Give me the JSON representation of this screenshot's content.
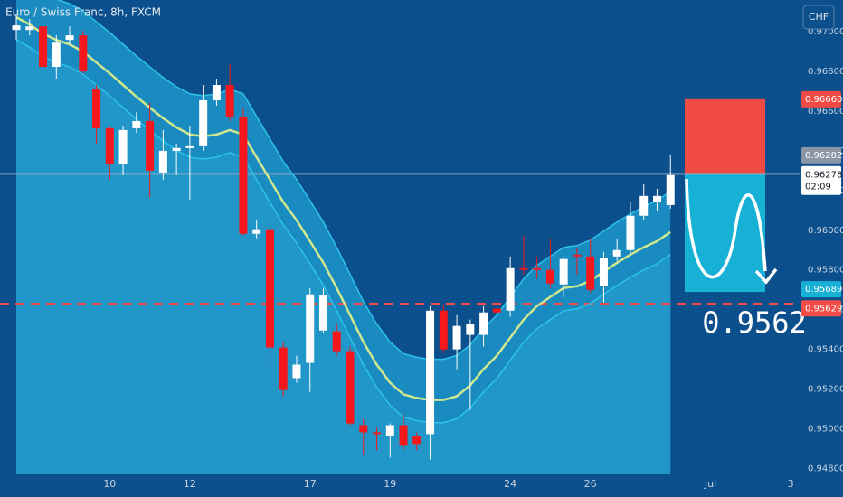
{
  "chart_data": {
    "type": "candlestick",
    "title": "Euro / Swiss Franc, 8h, FXCM",
    "currency_button": "CHF",
    "up_color": "#ffffff",
    "down_color": "#f5171b",
    "open": [
      0.97009,
      0.97009,
      0.97027,
      0.96823,
      0.96959,
      0.96982,
      0.96709,
      0.96514,
      0.96332,
      0.96514,
      0.9655,
      0.96291,
      0.964,
      0.96414,
      0.96423,
      0.96655,
      0.96732,
      0.96573,
      0.95982,
      0.96005,
      0.95409,
      0.95255,
      0.95332,
      0.95495,
      0.95491,
      0.95391,
      0.95018,
      0.94982,
      0.94964,
      0.95018,
      0.94964,
      0.94973,
      0.95595,
      0.954,
      0.95473,
      0.95473,
      0.95605,
      0.95595,
      0.95809,
      0.95809,
      0.958,
      0.95727,
      0.95877,
      0.95868,
      0.95718,
      0.95868,
      0.959,
      0.96073,
      0.96141,
      0.96127
    ],
    "high": [
      0.97082,
      0.97064,
      0.97073,
      0.96982,
      0.97027,
      0.97005,
      0.96732,
      0.96527,
      0.96527,
      0.96595,
      0.96641,
      0.96505,
      0.96436,
      0.96527,
      0.96732,
      0.96764,
      0.96836,
      0.96618,
      0.9605,
      0.96027,
      0.95436,
      0.95368,
      0.95709,
      0.95709,
      0.95527,
      0.95414,
      0.9505,
      0.95005,
      0.95027,
      0.95073,
      0.94982,
      0.95618,
      0.95627,
      0.95573,
      0.9555,
      0.95618,
      0.95636,
      0.95868,
      0.95973,
      0.95868,
      0.95959,
      0.95868,
      0.95914,
      0.95959,
      0.95891,
      0.95959,
      0.96141,
      0.96232,
      0.96209,
      0.96382
    ],
    "low": [
      0.96959,
      0.96982,
      0.96809,
      0.96764,
      0.96936,
      0.96791,
      0.96436,
      0.96255,
      0.96277,
      0.96491,
      0.96164,
      0.96255,
      0.96277,
      0.96155,
      0.964,
      0.96627,
      0.9655,
      0.95973,
      0.95959,
      0.953,
      0.95164,
      0.95232,
      0.95186,
      0.95482,
      0.95368,
      0.95018,
      0.94868,
      0.94891,
      0.94855,
      0.94891,
      0.94891,
      0.94845,
      0.95382,
      0.953,
      0.95095,
      0.95414,
      0.95573,
      0.95564,
      0.95777,
      0.95755,
      0.95709,
      0.95664,
      0.95777,
      0.95686,
      0.95636,
      0.95845,
      0.95882,
      0.9605,
      0.96095,
      0.96109
    ],
    "close": [
      0.97032,
      0.97027,
      0.96823,
      0.96945,
      0.96982,
      0.968,
      0.96514,
      0.96332,
      0.96505,
      0.9655,
      0.963,
      0.964,
      0.96414,
      0.96423,
      0.96655,
      0.96732,
      0.96573,
      0.95982,
      0.96005,
      0.95409,
      0.95195,
      0.95323,
      0.95677,
      0.95673,
      0.95391,
      0.95027,
      0.94982,
      0.94973,
      0.95018,
      0.94914,
      0.94923,
      0.95595,
      0.954,
      0.95518,
      0.95527,
      0.95586,
      0.95586,
      0.95809,
      0.958,
      0.958,
      0.95732,
      0.95855,
      0.95868,
      0.957,
      0.95859,
      0.959,
      0.96073,
      0.96173,
      0.96173,
      0.96278
    ],
    "indicators": [
      {
        "role": "upper",
        "color": "#2cc3ea",
        "values": [
          0.97278,
          0.97241,
          0.97196,
          0.97164,
          0.97141,
          0.97105,
          0.9705,
          0.96996,
          0.96937,
          0.96878,
          0.96823,
          0.96769,
          0.96723,
          0.96687,
          0.96678,
          0.96687,
          0.9671,
          0.96687,
          0.96573,
          0.9646,
          0.96346,
          0.96255,
          0.9615,
          0.96041,
          0.95914,
          0.95778,
          0.95641,
          0.95528,
          0.95437,
          0.95378,
          0.9536,
          0.9535,
          0.9535,
          0.95369,
          0.95423,
          0.95505,
          0.95573,
          0.95664,
          0.95755,
          0.95823,
          0.95869,
          0.95914,
          0.95923,
          0.9595,
          0.95996,
          0.96041,
          0.96082,
          0.96119,
          0.9615,
          0.96196
        ]
      },
      {
        "role": "lower",
        "color": "#2cc3ea",
        "values": [
          0.96959,
          0.96922,
          0.96877,
          0.96845,
          0.96822,
          0.96786,
          0.96731,
          0.96677,
          0.96618,
          0.96559,
          0.96504,
          0.9645,
          0.96404,
          0.96368,
          0.96359,
          0.96368,
          0.96391,
          0.96368,
          0.96254,
          0.96141,
          0.96027,
          0.95936,
          0.95831,
          0.95722,
          0.95595,
          0.95459,
          0.95322,
          0.95209,
          0.95118,
          0.95059,
          0.95041,
          0.95031,
          0.95031,
          0.9505,
          0.95104,
          0.95186,
          0.95254,
          0.95345,
          0.95436,
          0.95504,
          0.9555,
          0.95595,
          0.95604,
          0.95631,
          0.95677,
          0.95722,
          0.95763,
          0.958,
          0.95831,
          0.95877
        ]
      },
      {
        "role": "ma",
        "color": "#cfe88f",
        "values": [
          0.97073,
          0.97036,
          0.96991,
          0.96959,
          0.96936,
          0.969,
          0.96845,
          0.96791,
          0.96732,
          0.96673,
          0.96618,
          0.96564,
          0.96518,
          0.96482,
          0.96473,
          0.96482,
          0.96505,
          0.96482,
          0.96368,
          0.96255,
          0.96141,
          0.9605,
          0.95945,
          0.95836,
          0.95709,
          0.95573,
          0.95436,
          0.95323,
          0.95232,
          0.95173,
          0.95155,
          0.95145,
          0.95145,
          0.95164,
          0.95218,
          0.953,
          0.95368,
          0.95459,
          0.9555,
          0.95618,
          0.95664,
          0.95709,
          0.95718,
          0.95745,
          0.95791,
          0.95836,
          0.95877,
          0.95914,
          0.95945,
          0.95991
        ]
      }
    ],
    "xlim": [
      -1.22,
      58.74
    ],
    "xticks": [
      {
        "value": 7,
        "label": "10"
      },
      {
        "value": 13,
        "label": "12"
      },
      {
        "value": 22,
        "label": "17"
      },
      {
        "value": 28,
        "label": "19"
      },
      {
        "value": 37,
        "label": "24"
      },
      {
        "value": 43,
        "label": "26"
      },
      {
        "value": 52,
        "label": "Jul"
      },
      {
        "value": 58,
        "label": "3"
      }
    ],
    "ylim": [
      0.9477,
      0.9716
    ],
    "yticks": [
      {
        "value": 0.97,
        "label": "0.97000"
      },
      {
        "value": 0.968,
        "label": "0.96800"
      },
      {
        "value": 0.966,
        "label": "0.96600"
      },
      {
        "value": 0.964,
        "label": "0.96400"
      },
      {
        "value": 0.962,
        "label": "0.96200"
      },
      {
        "value": 0.96,
        "label": "0.96000"
      },
      {
        "value": 0.958,
        "label": "0.95800"
      },
      {
        "value": 0.956,
        "label": "0.95600"
      },
      {
        "value": 0.954,
        "label": "0.95400"
      },
      {
        "value": 0.952,
        "label": "0.95200"
      },
      {
        "value": 0.95,
        "label": "0.95000"
      },
      {
        "value": 0.948,
        "label": "0.94800"
      }
    ],
    "position": {
      "stop": {
        "value": 0.9666,
        "label": "0.96660",
        "color": "#f04a45"
      },
      "entry": {
        "value": 0.96282,
        "label": "0.96282",
        "color": "#b2b5be"
      },
      "target": {
        "value": 0.95689,
        "label": "0.95689",
        "color": "#18b1d6"
      }
    },
    "last_price": {
      "value": 0.96278,
      "label": "0.96278",
      "countdown": "02:09"
    },
    "support": {
      "value": 0.95629,
      "label": "0.95629",
      "color": "#f24c48"
    },
    "annotation": "0.9562"
  }
}
